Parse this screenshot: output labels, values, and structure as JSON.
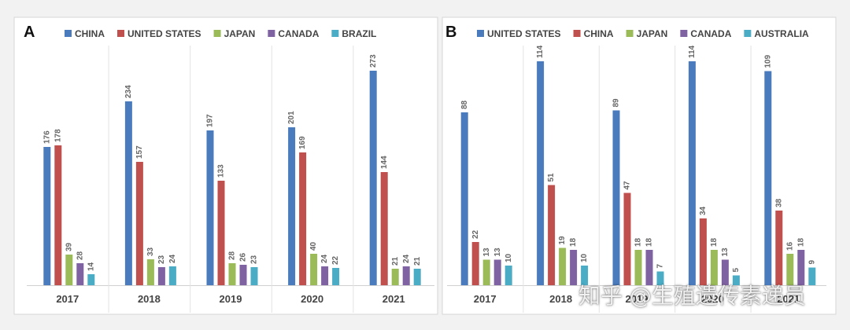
{
  "colors": {
    "blue": "#4a7bbd",
    "red": "#c0504d",
    "green": "#9bbb59",
    "purple": "#7f62a1",
    "cyan": "#4bacc6"
  },
  "watermark": "知乎 @生殖遗传素递员",
  "chart_data": [
    {
      "type": "bar",
      "panel": "A",
      "categories": [
        "2017",
        "2018",
        "2019",
        "2020",
        "2021"
      ],
      "series": [
        {
          "name": "CHINA",
          "color": "#4a7bbd",
          "values": [
            176,
            234,
            197,
            201,
            273
          ]
        },
        {
          "name": "UNITED STATES",
          "color": "#c0504d",
          "values": [
            178,
            157,
            133,
            169,
            144
          ]
        },
        {
          "name": "JAPAN",
          "color": "#9bbb59",
          "values": [
            39,
            33,
            28,
            40,
            21
          ]
        },
        {
          "name": "CANADA",
          "color": "#7f62a1",
          "values": [
            28,
            23,
            26,
            24,
            24
          ]
        },
        {
          "name": "BRAZIL",
          "color": "#4bacc6",
          "values": [
            14,
            24,
            23,
            22,
            21
          ]
        }
      ],
      "ylim": [
        0,
        290
      ],
      "legend": "top",
      "grid": false
    },
    {
      "type": "bar",
      "panel": "B",
      "categories": [
        "2017",
        "2018",
        "2019",
        "2020",
        "2021"
      ],
      "series": [
        {
          "name": "UNITED STATES",
          "color": "#4a7bbd",
          "values": [
            88,
            114,
            89,
            114,
            109
          ]
        },
        {
          "name": "CHINA",
          "color": "#c0504d",
          "values": [
            22,
            51,
            47,
            34,
            38
          ]
        },
        {
          "name": "JAPAN",
          "color": "#9bbb59",
          "values": [
            13,
            19,
            18,
            18,
            16
          ]
        },
        {
          "name": "CANADA",
          "color": "#7f62a1",
          "values": [
            13,
            18,
            18,
            13,
            18
          ]
        },
        {
          "name": "AUSTRALIA",
          "color": "#4bacc6",
          "values": [
            10,
            10,
            7,
            5,
            9
          ]
        }
      ],
      "ylim": [
        0,
        120
      ],
      "legend": "top",
      "grid": false
    }
  ]
}
